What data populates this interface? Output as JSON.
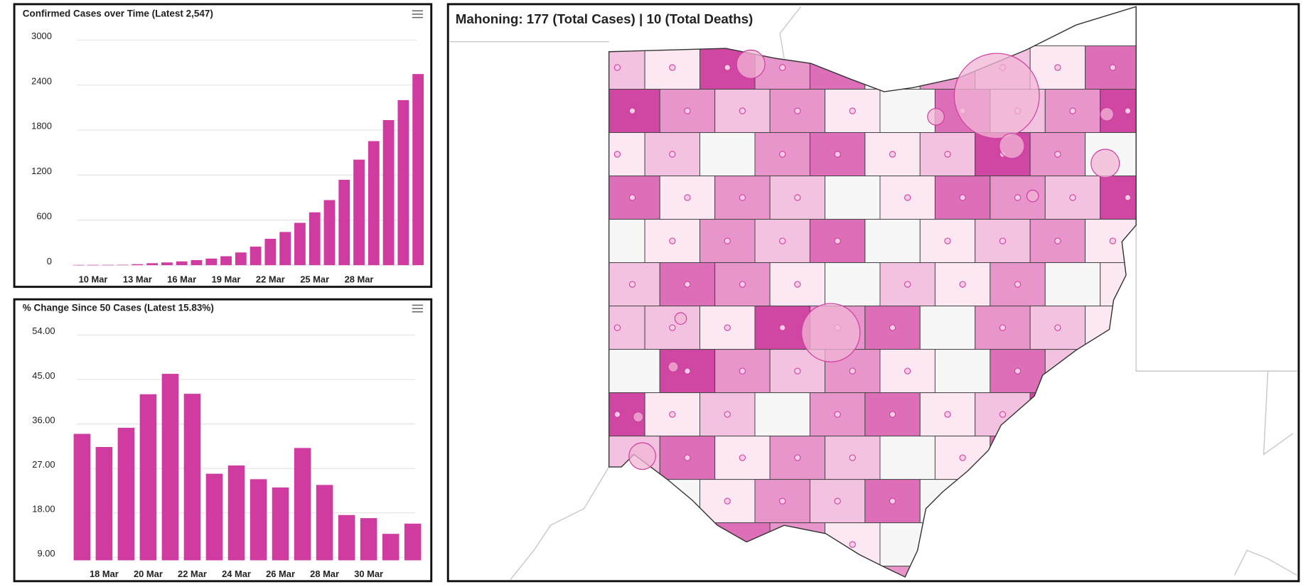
{
  "chart_data": [
    {
      "type": "bar",
      "title": "Confirmed Cases over Time (Latest 2,547)",
      "categories": [
        null,
        "10 Mar",
        null,
        null,
        "13 Mar",
        null,
        null,
        "16 Mar",
        null,
        null,
        "19 Mar",
        null,
        null,
        "22 Mar",
        null,
        null,
        "25 Mar",
        null,
        null,
        "28 Mar",
        null,
        null,
        null,
        null
      ],
      "values": [
        3,
        3,
        4,
        5,
        13,
        26,
        36,
        50,
        67,
        88,
        119,
        169,
        247,
        351,
        442,
        564,
        704,
        867,
        1137,
        1406,
        1653,
        1933,
        2199,
        2547
      ],
      "color": "#cf3b9f",
      "ylim": [
        0,
        3000
      ],
      "yticks": [
        0,
        600,
        1200,
        1800,
        2400,
        3000
      ],
      "grid": true
    },
    {
      "type": "bar",
      "title": "% Change Since 50 Cases (Latest 15.83%)",
      "categories": [
        null,
        "18 Mar",
        null,
        "20 Mar",
        null,
        "22 Mar",
        null,
        "24 Mar",
        null,
        "26 Mar",
        null,
        "28 Mar",
        null,
        "30 Mar",
        null,
        null
      ],
      "values": [
        34.0,
        31.34,
        35.23,
        42.02,
        46.15,
        42.11,
        25.93,
        27.6,
        24.82,
        23.15,
        31.14,
        23.66,
        17.57,
        16.94,
        13.76,
        15.83
      ],
      "color": "#cf3b9f",
      "ylim": [
        8.4,
        56
      ],
      "yticks": [
        {
          "value": 9,
          "label": "9.00"
        },
        {
          "value": 18,
          "label": "18.00"
        },
        {
          "value": 27,
          "label": "27.00"
        },
        {
          "value": 36,
          "label": "36.00"
        },
        {
          "value": 45,
          "label": "45.00"
        },
        {
          "value": 54,
          "label": "54.00"
        }
      ],
      "grid": true
    }
  ],
  "map": {
    "title": "Mahoning: 177 (Total Cases) | 10 (Total Deaths)"
  }
}
